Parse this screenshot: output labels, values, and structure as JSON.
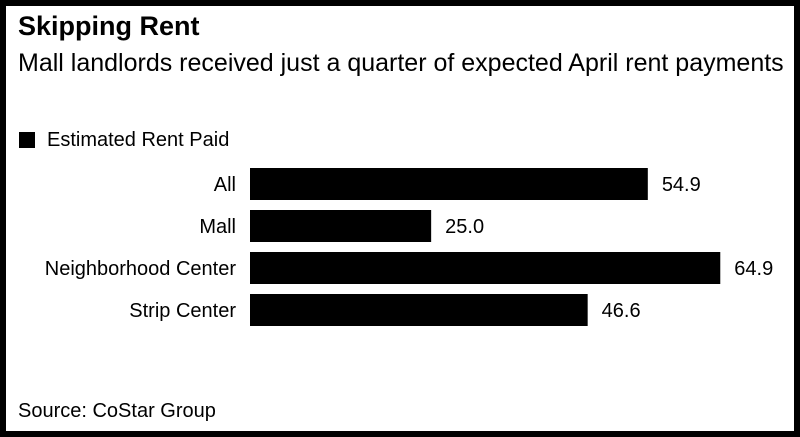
{
  "chart_data": {
    "type": "bar",
    "orientation": "horizontal",
    "title": "Skipping Rent",
    "subtitle": "Mall landlords received just a quarter of expected April rent payments",
    "categories": [
      "All",
      "Mall",
      "Neighborhood Center",
      "Strip Center"
    ],
    "series": [
      {
        "name": "Estimated Rent Paid",
        "values": [
          54.9,
          25.0,
          64.9,
          46.6
        ],
        "labels": [
          "54.9",
          "25.0",
          "64.9",
          "46.6"
        ]
      }
    ],
    "xlim": [
      0,
      65
    ],
    "grid": false,
    "legend": "top-left",
    "source": "Source: CoStar Group",
    "colors": {
      "bar": "#000000",
      "background": "#ffffff",
      "frame": "#000000"
    }
  }
}
